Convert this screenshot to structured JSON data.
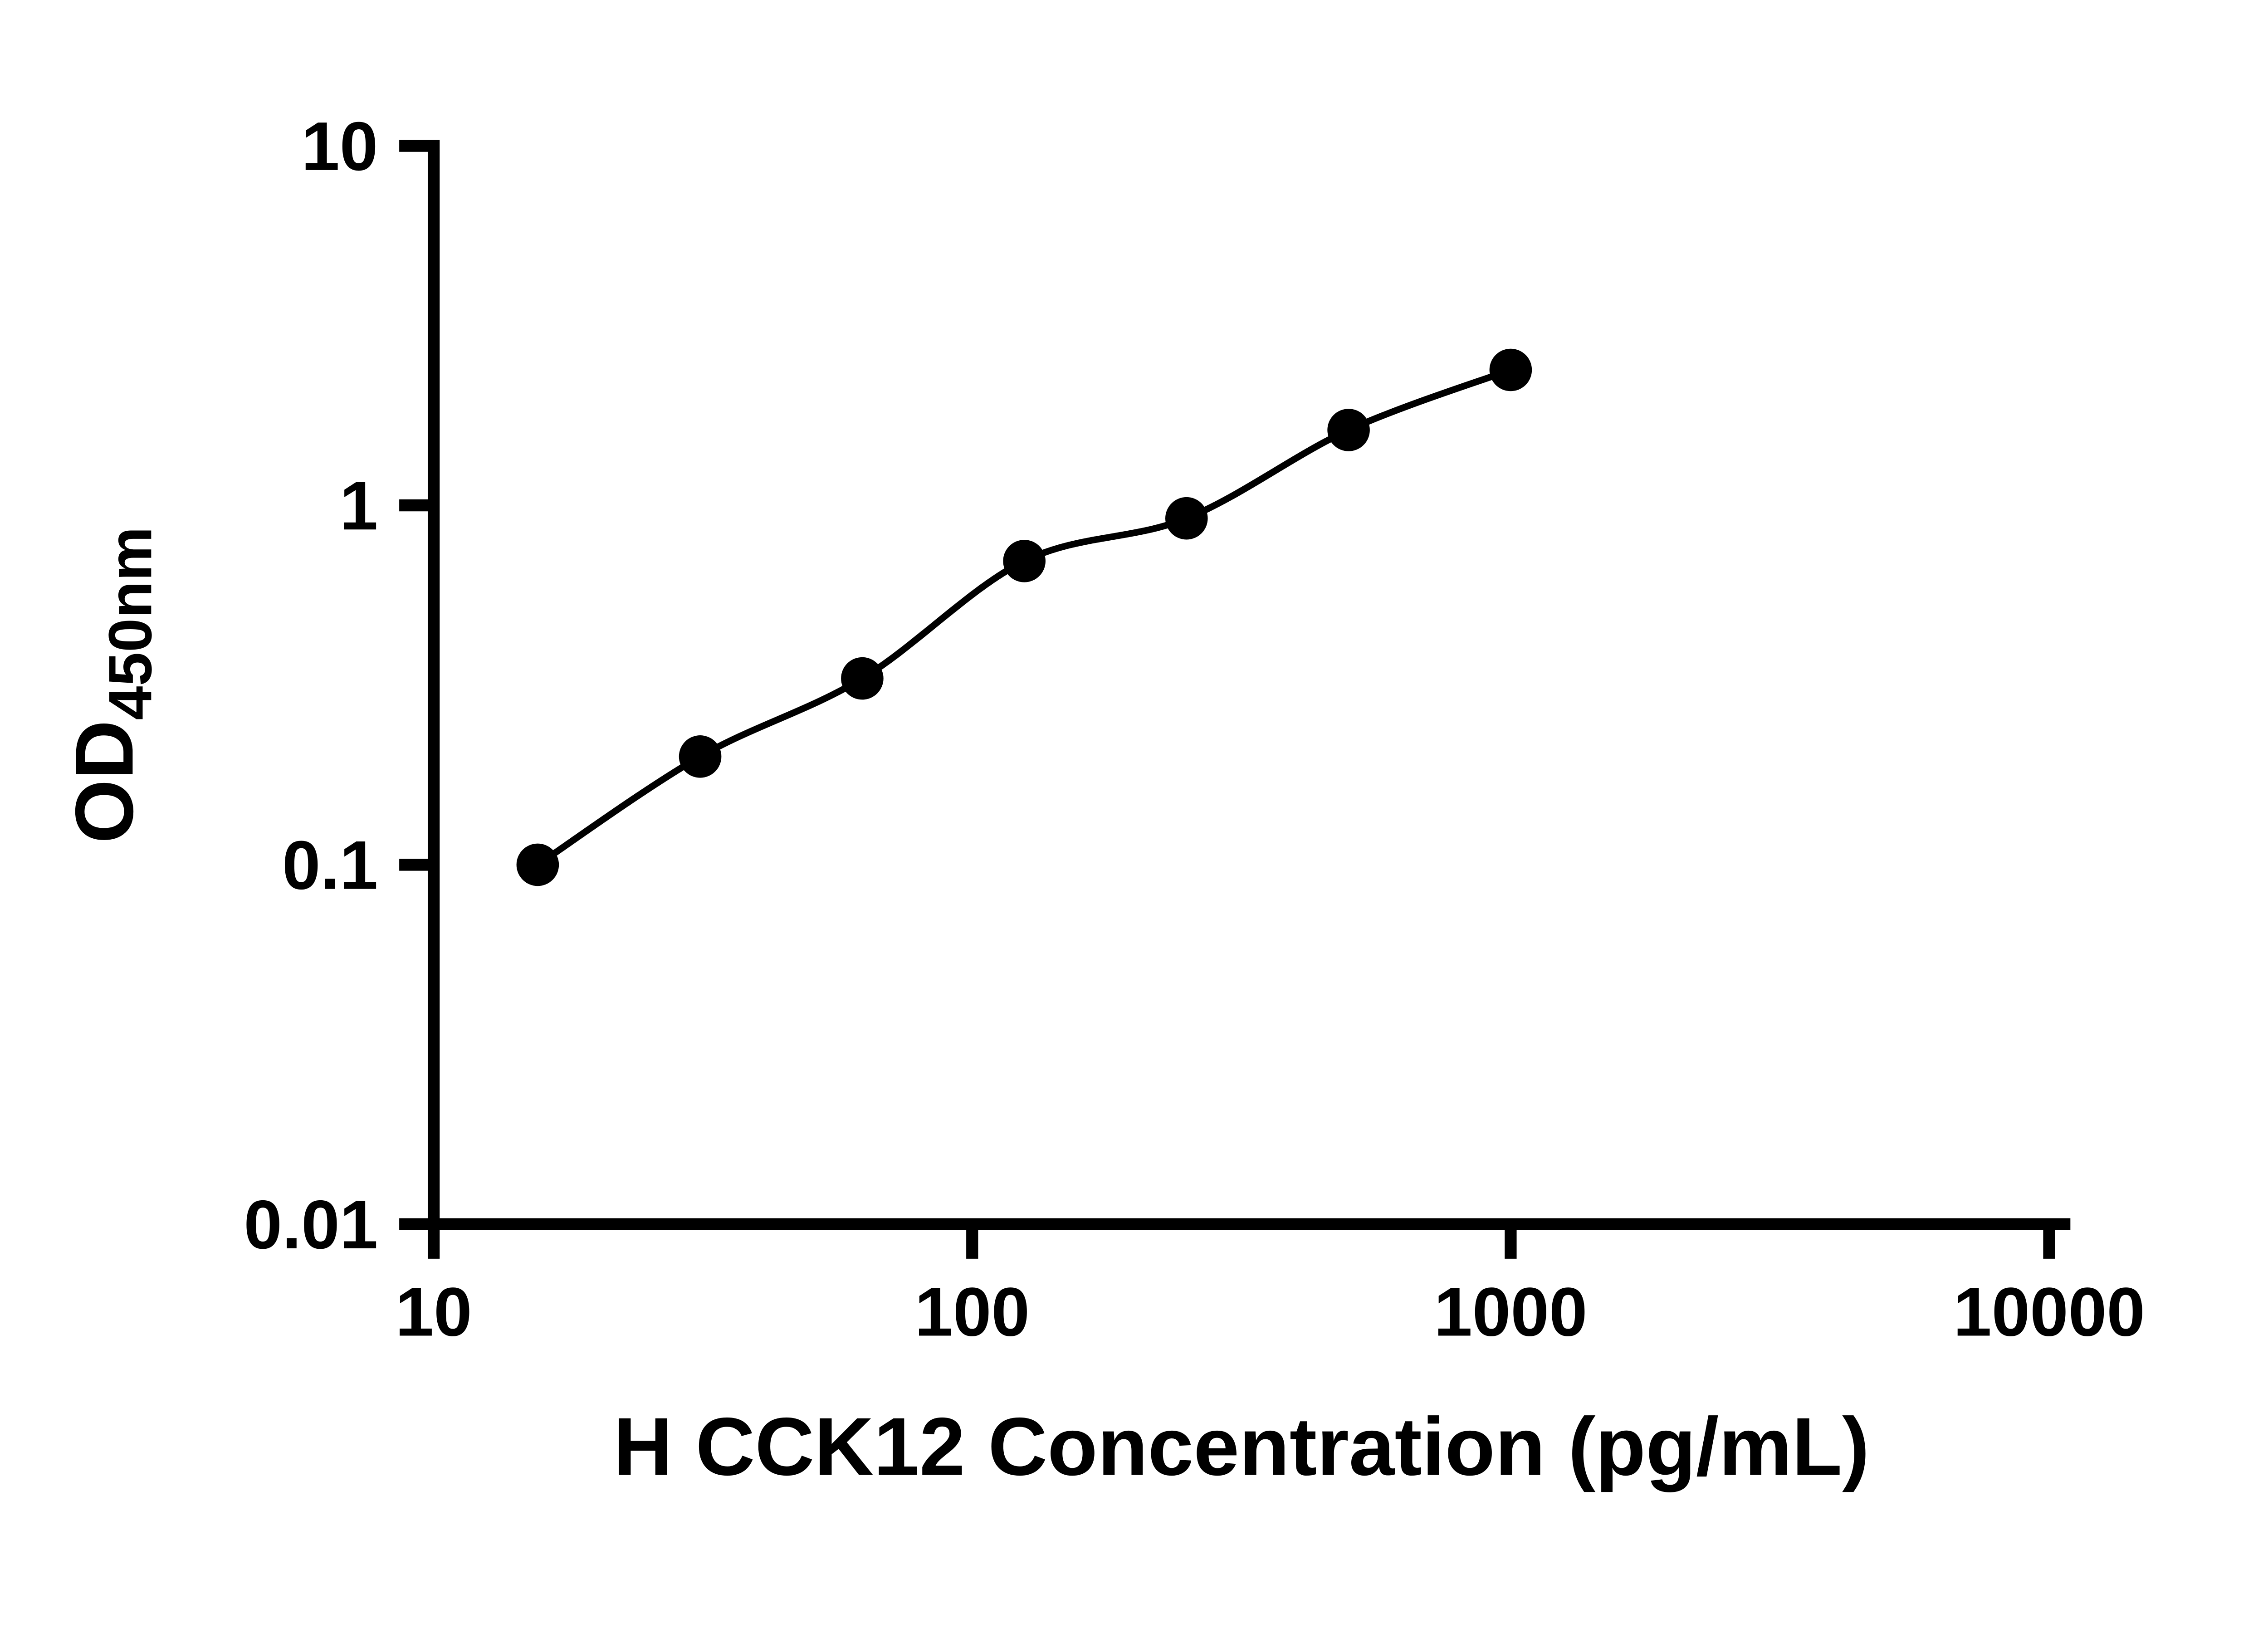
{
  "figure": {
    "description": "ELISA standard curve scatter plot with fitted line on log-log axes"
  },
  "chart_data": {
    "type": "scatter",
    "title": "",
    "xlabel": "H CCK12 Concentration (pg/mL)",
    "ylabel_main": "OD",
    "ylabel_sub": "450nm",
    "x_scale": "log",
    "y_scale": "log",
    "xlim": [
      10,
      10000
    ],
    "ylim": [
      0.01,
      10
    ],
    "x_ticks": [
      10,
      100,
      1000,
      10000
    ],
    "x_tick_labels": [
      "10",
      "100",
      "1000",
      "10000"
    ],
    "y_ticks": [
      0.01,
      0.1,
      1,
      10
    ],
    "y_tick_labels": [
      "0.01",
      "0.1",
      "1",
      "10"
    ],
    "grid": false,
    "legend": "none",
    "points": [
      {
        "x": 15.6,
        "y": 0.1
      },
      {
        "x": 31.25,
        "y": 0.2
      },
      {
        "x": 62.5,
        "y": 0.33
      },
      {
        "x": 125,
        "y": 0.7
      },
      {
        "x": 250,
        "y": 0.92
      },
      {
        "x": 500,
        "y": 1.62
      },
      {
        "x": 1000,
        "y": 2.38
      }
    ],
    "curve": "smooth fit through points",
    "marker_color": "#000000",
    "line_color": "#000000",
    "axis_color": "#000000",
    "background": "#ffffff"
  }
}
